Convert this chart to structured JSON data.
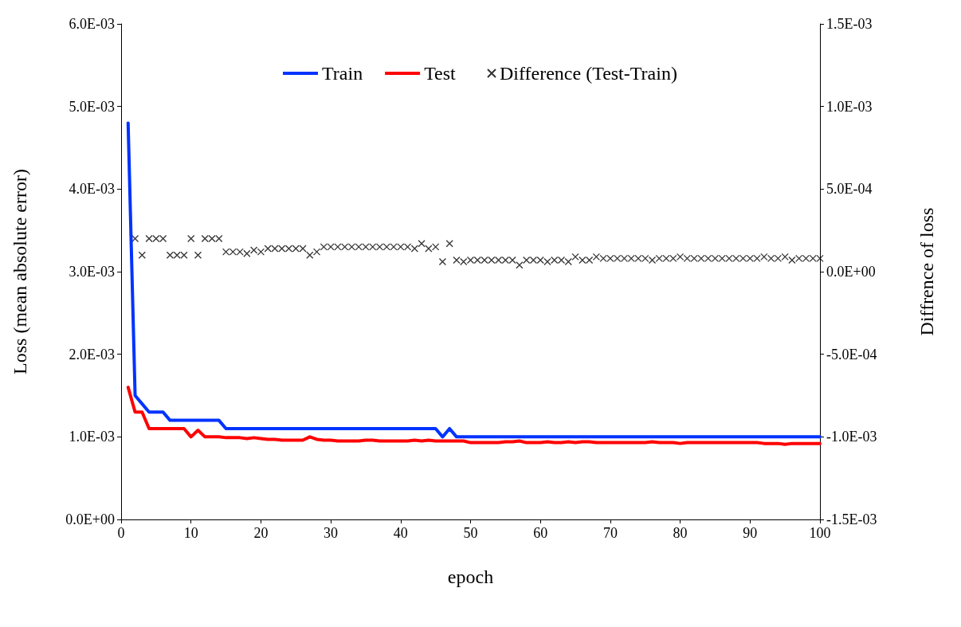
{
  "chart_data": {
    "type": "line",
    "xlabel": "epoch",
    "ylabel": "Loss (mean absolute error)",
    "y2label": "Diffrence of loss",
    "xlim": [
      0,
      100
    ],
    "xticks": [
      0,
      10,
      20,
      30,
      40,
      50,
      60,
      70,
      80,
      90,
      100
    ],
    "ylim": [
      0,
      0.006
    ],
    "yticks": [
      {
        "value": 0,
        "label": "0.0E+00"
      },
      {
        "value": 0.001,
        "label": "1.0E-03"
      },
      {
        "value": 0.002,
        "label": "2.0E-03"
      },
      {
        "value": 0.003,
        "label": "3.0E-03"
      },
      {
        "value": 0.004,
        "label": "4.0E-03"
      },
      {
        "value": 0.005,
        "label": "5.0E-03"
      },
      {
        "value": 0.006,
        "label": "6.0E-03"
      }
    ],
    "y2lim": [
      -0.0015,
      0.0015
    ],
    "y2ticks": [
      {
        "value": -0.0015,
        "label": "-1.5E-03"
      },
      {
        "value": -0.001,
        "label": "-1.0E-03"
      },
      {
        "value": -0.0005,
        "label": "-5.0E-04"
      },
      {
        "value": 0,
        "label": "0.0E+00"
      },
      {
        "value": 0.0005,
        "label": "5.0E-04"
      },
      {
        "value": 0.001,
        "label": "1.0E-03"
      },
      {
        "value": 0.0015,
        "label": "1.5E-03"
      }
    ],
    "grid": false,
    "legend": "top",
    "line_style": "solid",
    "series": [
      {
        "name": "Train",
        "type": "line",
        "color": "#0033ff",
        "marker": "none",
        "x": [
          1,
          2,
          3,
          4,
          5,
          6,
          7,
          8,
          9,
          10,
          11,
          12,
          13,
          14,
          15,
          16,
          17,
          18,
          19,
          20,
          21,
          22,
          23,
          24,
          25,
          26,
          27,
          28,
          29,
          30,
          31,
          32,
          33,
          34,
          35,
          36,
          37,
          38,
          39,
          40,
          41,
          42,
          43,
          44,
          45,
          46,
          47,
          48,
          49,
          50,
          51,
          52,
          53,
          54,
          55,
          56,
          57,
          58,
          59,
          60,
          61,
          62,
          63,
          64,
          65,
          66,
          67,
          68,
          69,
          70,
          71,
          72,
          73,
          74,
          75,
          76,
          77,
          78,
          79,
          80,
          81,
          82,
          83,
          84,
          85,
          86,
          87,
          88,
          89,
          90,
          91,
          92,
          93,
          94,
          95,
          96,
          97,
          98,
          99,
          100
        ],
        "values": [
          0.0048,
          0.0015,
          0.0014,
          0.0013,
          0.0013,
          0.0013,
          0.0012,
          0.0012,
          0.0012,
          0.0012,
          0.0012,
          0.0012,
          0.0012,
          0.0012,
          0.0011,
          0.0011,
          0.0011,
          0.0011,
          0.0011,
          0.0011,
          0.0011,
          0.0011,
          0.0011,
          0.0011,
          0.0011,
          0.0011,
          0.0011,
          0.0011,
          0.0011,
          0.0011,
          0.0011,
          0.0011,
          0.0011,
          0.0011,
          0.0011,
          0.0011,
          0.0011,
          0.0011,
          0.0011,
          0.0011,
          0.0011,
          0.0011,
          0.0011,
          0.0011,
          0.0011,
          0.001,
          0.0011,
          0.001,
          0.001,
          0.001,
          0.001,
          0.001,
          0.001,
          0.001,
          0.001,
          0.001,
          0.001,
          0.001,
          0.001,
          0.001,
          0.001,
          0.001,
          0.001,
          0.001,
          0.001,
          0.001,
          0.001,
          0.001,
          0.001,
          0.001,
          0.001,
          0.001,
          0.001,
          0.001,
          0.001,
          0.001,
          0.001,
          0.001,
          0.001,
          0.001,
          0.001,
          0.001,
          0.001,
          0.001,
          0.001,
          0.001,
          0.001,
          0.001,
          0.001,
          0.001,
          0.001,
          0.001,
          0.001,
          0.001,
          0.001,
          0.001,
          0.001,
          0.001,
          0.001,
          0.001
        ]
      },
      {
        "name": "Test",
        "type": "line",
        "color": "#ff0000",
        "marker": "none",
        "x": [
          1,
          2,
          3,
          4,
          5,
          6,
          7,
          8,
          9,
          10,
          11,
          12,
          13,
          14,
          15,
          16,
          17,
          18,
          19,
          20,
          21,
          22,
          23,
          24,
          25,
          26,
          27,
          28,
          29,
          30,
          31,
          32,
          33,
          34,
          35,
          36,
          37,
          38,
          39,
          40,
          41,
          42,
          43,
          44,
          45,
          46,
          47,
          48,
          49,
          50,
          51,
          52,
          53,
          54,
          55,
          56,
          57,
          58,
          59,
          60,
          61,
          62,
          63,
          64,
          65,
          66,
          67,
          68,
          69,
          70,
          71,
          72,
          73,
          74,
          75,
          76,
          77,
          78,
          79,
          80,
          81,
          82,
          83,
          84,
          85,
          86,
          87,
          88,
          89,
          90,
          91,
          92,
          93,
          94,
          95,
          96,
          97,
          98,
          99,
          100
        ],
        "values": [
          0.0016,
          0.0013,
          0.0013,
          0.0011,
          0.0011,
          0.0011,
          0.0011,
          0.0011,
          0.0011,
          0.001,
          0.00108,
          0.001,
          0.001,
          0.001,
          0.00099,
          0.00099,
          0.00099,
          0.00098,
          0.00099,
          0.00098,
          0.00097,
          0.00097,
          0.00096,
          0.00096,
          0.00096,
          0.00096,
          0.001,
          0.00097,
          0.00096,
          0.00096,
          0.00095,
          0.00095,
          0.00095,
          0.00095,
          0.00096,
          0.00096,
          0.00095,
          0.00095,
          0.00095,
          0.00095,
          0.00095,
          0.00096,
          0.00095,
          0.00096,
          0.00095,
          0.00095,
          0.00095,
          0.00095,
          0.00095,
          0.00093,
          0.00093,
          0.00093,
          0.00093,
          0.00093,
          0.00094,
          0.00094,
          0.00095,
          0.00093,
          0.00093,
          0.00093,
          0.00094,
          0.00093,
          0.00093,
          0.00094,
          0.00093,
          0.00094,
          0.00094,
          0.00093,
          0.00093,
          0.00093,
          0.00093,
          0.00093,
          0.00093,
          0.00093,
          0.00093,
          0.00094,
          0.00093,
          0.00093,
          0.00093,
          0.00092,
          0.00093,
          0.00093,
          0.00093,
          0.00093,
          0.00093,
          0.00093,
          0.00093,
          0.00093,
          0.00093,
          0.00093,
          0.00093,
          0.00092,
          0.00092,
          0.00092,
          0.00091,
          0.00092,
          0.00092,
          0.00092,
          0.00092,
          0.00092
        ]
      },
      {
        "name": "Difference (Test-Train)",
        "type": "scatter",
        "axis": "y2",
        "color": "#000000",
        "marker": "cross",
        "x": [
          2,
          3,
          4,
          5,
          6,
          7,
          8,
          9,
          10,
          11,
          12,
          13,
          14,
          15,
          16,
          17,
          18,
          19,
          20,
          21,
          22,
          23,
          24,
          25,
          26,
          27,
          28,
          29,
          30,
          31,
          32,
          33,
          34,
          35,
          36,
          37,
          38,
          39,
          40,
          41,
          42,
          43,
          44,
          45,
          46,
          47,
          48,
          49,
          50,
          51,
          52,
          53,
          54,
          55,
          56,
          57,
          58,
          59,
          60,
          61,
          62,
          63,
          64,
          65,
          66,
          67,
          68,
          69,
          70,
          71,
          72,
          73,
          74,
          75,
          76,
          77,
          78,
          79,
          80,
          81,
          82,
          83,
          84,
          85,
          86,
          87,
          88,
          89,
          90,
          91,
          92,
          93,
          94,
          95,
          96,
          97,
          98,
          99,
          100
        ],
        "values": [
          0.0002,
          0.0001,
          0.0002,
          0.0002,
          0.0002,
          0.0001,
          0.0001,
          0.0001,
          0.0002,
          0.0001,
          0.0002,
          0.0002,
          0.0002,
          0.00012,
          0.00012,
          0.00012,
          0.00011,
          0.00013,
          0.00012,
          0.00014,
          0.00014,
          0.00014,
          0.00014,
          0.00014,
          0.00014,
          0.0001,
          0.00012,
          0.00015,
          0.00015,
          0.00015,
          0.00015,
          0.00015,
          0.00015,
          0.00015,
          0.00015,
          0.00015,
          0.00015,
          0.00015,
          0.00015,
          0.00015,
          0.00014,
          0.00017,
          0.00014,
          0.00015,
          6e-05,
          0.00017,
          7e-05,
          6e-05,
          7e-05,
          7e-05,
          7e-05,
          7e-05,
          7e-05,
          7e-05,
          7e-05,
          4e-05,
          7e-05,
          7e-05,
          7e-05,
          6e-05,
          7e-05,
          7e-05,
          6e-05,
          9e-05,
          7e-05,
          7e-05,
          9e-05,
          8e-05,
          8e-05,
          8e-05,
          8e-05,
          8e-05,
          8e-05,
          8e-05,
          7e-05,
          8e-05,
          8e-05,
          8e-05,
          9e-05,
          8e-05,
          8e-05,
          8e-05,
          8e-05,
          8e-05,
          8e-05,
          8e-05,
          8e-05,
          8e-05,
          8e-05,
          8e-05,
          9e-05,
          8e-05,
          8e-05,
          9e-05,
          7e-05,
          8e-05,
          8e-05,
          8e-05,
          8e-05
        ]
      }
    ]
  }
}
